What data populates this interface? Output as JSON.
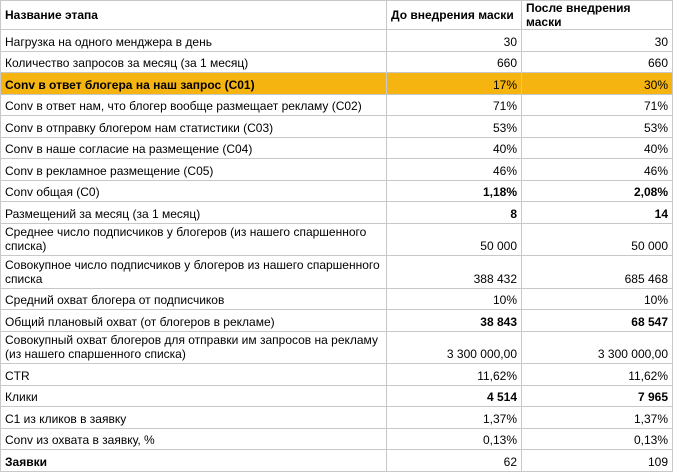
{
  "table": {
    "header": [
      "Название этапа",
      "До внедрения маски",
      "После внедрения маски"
    ],
    "rows": [
      {
        "cells": [
          "Нагрузка на одного менджера в день",
          "30",
          "30"
        ],
        "highlight": false,
        "label_bold": false,
        "values_bold": false
      },
      {
        "cells": [
          "Количество запросов за месяц (за 1 месяц)",
          "660",
          "660"
        ],
        "highlight": false,
        "label_bold": false,
        "values_bold": false
      },
      {
        "cells": [
          "Conv в ответ блогера на наш запрос (C01)",
          "17%",
          "30%"
        ],
        "highlight": true,
        "label_bold": true,
        "values_bold": false
      },
      {
        "cells": [
          "Conv в ответ нам, что блогер вообще размещает рекламу (C02)",
          "71%",
          "71%"
        ],
        "highlight": false,
        "label_bold": false,
        "values_bold": false
      },
      {
        "cells": [
          "Conv в отправку блогером нам статистики (C03)",
          "53%",
          "53%"
        ],
        "highlight": false,
        "label_bold": false,
        "values_bold": false
      },
      {
        "cells": [
          "Conv в наше согласие на размещение (C04)",
          "40%",
          "40%"
        ],
        "highlight": false,
        "label_bold": false,
        "values_bold": false
      },
      {
        "cells": [
          "Conv в рекламное размещение (C05)",
          "46%",
          "46%"
        ],
        "highlight": false,
        "label_bold": false,
        "values_bold": false
      },
      {
        "cells": [
          "Conv общая (C0)",
          "1,18%",
          "2,08%"
        ],
        "highlight": false,
        "label_bold": false,
        "values_bold": true
      },
      {
        "cells": [
          "Размещений за месяц (за 1 месяц)",
          "8",
          "14"
        ],
        "highlight": false,
        "label_bold": false,
        "values_bold": true
      },
      {
        "cells": [
          "Среднее число подписчиков у блогеров (из нашего спаршенного списка)",
          "50 000",
          "50 000"
        ],
        "highlight": false,
        "label_bold": false,
        "values_bold": false
      },
      {
        "cells": [
          "Совокупное число подписчиков у блогеров из нашего спаршенного списка",
          "388 432",
          "685 468"
        ],
        "highlight": false,
        "label_bold": false,
        "values_bold": false
      },
      {
        "cells": [
          "Средний охват блогера от подписчиков",
          "10%",
          "10%"
        ],
        "highlight": false,
        "label_bold": false,
        "values_bold": false
      },
      {
        "cells": [
          "Общий плановый охват (от блогеров в рекламе)",
          "38 843",
          "68 547"
        ],
        "highlight": false,
        "label_bold": false,
        "values_bold": true
      },
      {
        "cells": [
          "Совокупный охват блогеров для отправки им запросов на рекламу (из нашего спаршенного списка)",
          "3 300 000,00",
          "3 300 000,00"
        ],
        "highlight": false,
        "label_bold": false,
        "values_bold": false
      },
      {
        "cells": [
          "CTR",
          "11,62%",
          "11,62%"
        ],
        "highlight": false,
        "label_bold": false,
        "values_bold": false
      },
      {
        "cells": [
          "Клики",
          "4 514",
          "7 965"
        ],
        "highlight": false,
        "label_bold": false,
        "values_bold": true
      },
      {
        "cells": [
          "C1 из кликов в заявку",
          "1,37%",
          "1,37%"
        ],
        "highlight": false,
        "label_bold": false,
        "values_bold": false
      },
      {
        "cells": [
          "Conv из охвата в заявку, %",
          "0,13%",
          "0,13%"
        ],
        "highlight": false,
        "label_bold": false,
        "values_bold": false
      },
      {
        "cells": [
          "Заявки",
          "62",
          "109"
        ],
        "highlight": false,
        "label_bold": true,
        "values_bold": false
      }
    ]
  }
}
